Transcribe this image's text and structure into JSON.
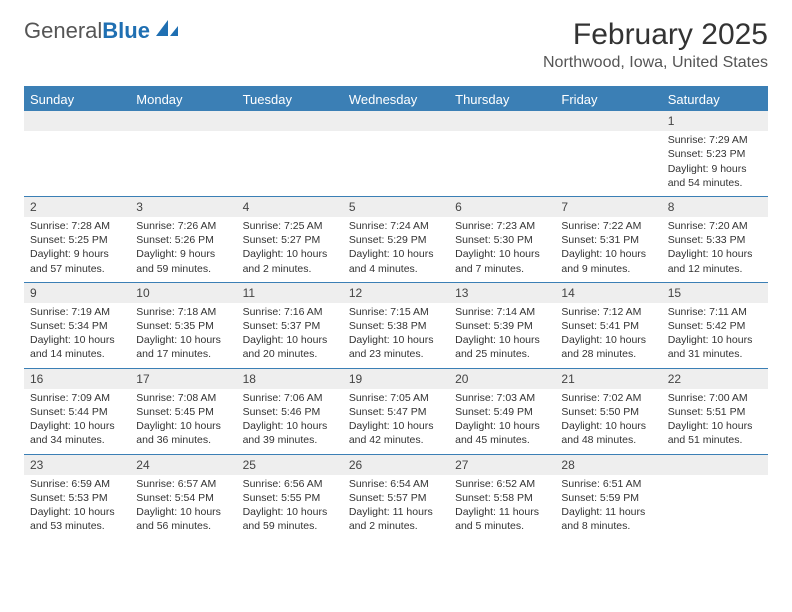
{
  "logo": {
    "part1": "General",
    "part2": "Blue"
  },
  "title": "February 2025",
  "location": "Northwood, Iowa, United States",
  "colors": {
    "bar": "#3b7fb5",
    "numbar": "#eeeeee",
    "text": "#333333"
  },
  "daysOfWeek": [
    "Sunday",
    "Monday",
    "Tuesday",
    "Wednesday",
    "Thursday",
    "Friday",
    "Saturday"
  ],
  "weeks": [
    [
      {
        "n": "",
        "lines": [
          "",
          "",
          "",
          ""
        ]
      },
      {
        "n": "",
        "lines": [
          "",
          "",
          "",
          ""
        ]
      },
      {
        "n": "",
        "lines": [
          "",
          "",
          "",
          ""
        ]
      },
      {
        "n": "",
        "lines": [
          "",
          "",
          "",
          ""
        ]
      },
      {
        "n": "",
        "lines": [
          "",
          "",
          "",
          ""
        ]
      },
      {
        "n": "",
        "lines": [
          "",
          "",
          "",
          ""
        ]
      },
      {
        "n": "1",
        "lines": [
          "Sunrise: 7:29 AM",
          "Sunset: 5:23 PM",
          "Daylight: 9 hours",
          "and 54 minutes."
        ]
      }
    ],
    [
      {
        "n": "2",
        "lines": [
          "Sunrise: 7:28 AM",
          "Sunset: 5:25 PM",
          "Daylight: 9 hours",
          "and 57 minutes."
        ]
      },
      {
        "n": "3",
        "lines": [
          "Sunrise: 7:26 AM",
          "Sunset: 5:26 PM",
          "Daylight: 9 hours",
          "and 59 minutes."
        ]
      },
      {
        "n": "4",
        "lines": [
          "Sunrise: 7:25 AM",
          "Sunset: 5:27 PM",
          "Daylight: 10 hours",
          "and 2 minutes."
        ]
      },
      {
        "n": "5",
        "lines": [
          "Sunrise: 7:24 AM",
          "Sunset: 5:29 PM",
          "Daylight: 10 hours",
          "and 4 minutes."
        ]
      },
      {
        "n": "6",
        "lines": [
          "Sunrise: 7:23 AM",
          "Sunset: 5:30 PM",
          "Daylight: 10 hours",
          "and 7 minutes."
        ]
      },
      {
        "n": "7",
        "lines": [
          "Sunrise: 7:22 AM",
          "Sunset: 5:31 PM",
          "Daylight: 10 hours",
          "and 9 minutes."
        ]
      },
      {
        "n": "8",
        "lines": [
          "Sunrise: 7:20 AM",
          "Sunset: 5:33 PM",
          "Daylight: 10 hours",
          "and 12 minutes."
        ]
      }
    ],
    [
      {
        "n": "9",
        "lines": [
          "Sunrise: 7:19 AM",
          "Sunset: 5:34 PM",
          "Daylight: 10 hours",
          "and 14 minutes."
        ]
      },
      {
        "n": "10",
        "lines": [
          "Sunrise: 7:18 AM",
          "Sunset: 5:35 PM",
          "Daylight: 10 hours",
          "and 17 minutes."
        ]
      },
      {
        "n": "11",
        "lines": [
          "Sunrise: 7:16 AM",
          "Sunset: 5:37 PM",
          "Daylight: 10 hours",
          "and 20 minutes."
        ]
      },
      {
        "n": "12",
        "lines": [
          "Sunrise: 7:15 AM",
          "Sunset: 5:38 PM",
          "Daylight: 10 hours",
          "and 23 minutes."
        ]
      },
      {
        "n": "13",
        "lines": [
          "Sunrise: 7:14 AM",
          "Sunset: 5:39 PM",
          "Daylight: 10 hours",
          "and 25 minutes."
        ]
      },
      {
        "n": "14",
        "lines": [
          "Sunrise: 7:12 AM",
          "Sunset: 5:41 PM",
          "Daylight: 10 hours",
          "and 28 minutes."
        ]
      },
      {
        "n": "15",
        "lines": [
          "Sunrise: 7:11 AM",
          "Sunset: 5:42 PM",
          "Daylight: 10 hours",
          "and 31 minutes."
        ]
      }
    ],
    [
      {
        "n": "16",
        "lines": [
          "Sunrise: 7:09 AM",
          "Sunset: 5:44 PM",
          "Daylight: 10 hours",
          "and 34 minutes."
        ]
      },
      {
        "n": "17",
        "lines": [
          "Sunrise: 7:08 AM",
          "Sunset: 5:45 PM",
          "Daylight: 10 hours",
          "and 36 minutes."
        ]
      },
      {
        "n": "18",
        "lines": [
          "Sunrise: 7:06 AM",
          "Sunset: 5:46 PM",
          "Daylight: 10 hours",
          "and 39 minutes."
        ]
      },
      {
        "n": "19",
        "lines": [
          "Sunrise: 7:05 AM",
          "Sunset: 5:47 PM",
          "Daylight: 10 hours",
          "and 42 minutes."
        ]
      },
      {
        "n": "20",
        "lines": [
          "Sunrise: 7:03 AM",
          "Sunset: 5:49 PM",
          "Daylight: 10 hours",
          "and 45 minutes."
        ]
      },
      {
        "n": "21",
        "lines": [
          "Sunrise: 7:02 AM",
          "Sunset: 5:50 PM",
          "Daylight: 10 hours",
          "and 48 minutes."
        ]
      },
      {
        "n": "22",
        "lines": [
          "Sunrise: 7:00 AM",
          "Sunset: 5:51 PM",
          "Daylight: 10 hours",
          "and 51 minutes."
        ]
      }
    ],
    [
      {
        "n": "23",
        "lines": [
          "Sunrise: 6:59 AM",
          "Sunset: 5:53 PM",
          "Daylight: 10 hours",
          "and 53 minutes."
        ]
      },
      {
        "n": "24",
        "lines": [
          "Sunrise: 6:57 AM",
          "Sunset: 5:54 PM",
          "Daylight: 10 hours",
          "and 56 minutes."
        ]
      },
      {
        "n": "25",
        "lines": [
          "Sunrise: 6:56 AM",
          "Sunset: 5:55 PM",
          "Daylight: 10 hours",
          "and 59 minutes."
        ]
      },
      {
        "n": "26",
        "lines": [
          "Sunrise: 6:54 AM",
          "Sunset: 5:57 PM",
          "Daylight: 11 hours",
          "and 2 minutes."
        ]
      },
      {
        "n": "27",
        "lines": [
          "Sunrise: 6:52 AM",
          "Sunset: 5:58 PM",
          "Daylight: 11 hours",
          "and 5 minutes."
        ]
      },
      {
        "n": "28",
        "lines": [
          "Sunrise: 6:51 AM",
          "Sunset: 5:59 PM",
          "Daylight: 11 hours",
          "and 8 minutes."
        ]
      },
      {
        "n": "",
        "lines": [
          "",
          "",
          "",
          ""
        ]
      }
    ]
  ]
}
